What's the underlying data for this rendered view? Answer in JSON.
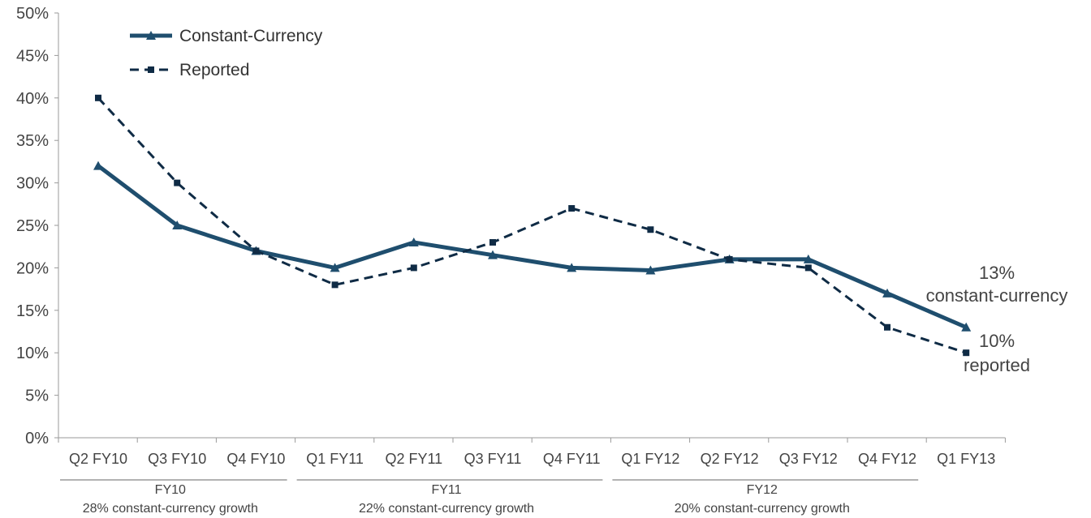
{
  "chart_data": {
    "type": "line",
    "categories": [
      "Q2 FY10",
      "Q3 FY10",
      "Q4 FY10",
      "Q1 FY11",
      "Q2 FY11",
      "Q3 FY11",
      "Q4 FY11",
      "Q1 FY12",
      "Q2 FY12",
      "Q3 FY12",
      "Q4 FY12",
      "Q1 FY13"
    ],
    "series": [
      {
        "name": "Constant-Currency",
        "values": [
          32,
          25,
          22,
          20,
          23,
          21.5,
          20,
          19.7,
          21,
          21,
          17,
          13
        ],
        "color": "#1f4e6e",
        "style": "solid",
        "marker": "triangle"
      },
      {
        "name": "Reported",
        "values": [
          40,
          30,
          22,
          18,
          20,
          23,
          27,
          24.5,
          21,
          20,
          13,
          10
        ],
        "color": "#0f2b45",
        "style": "dashed",
        "marker": "square"
      }
    ],
    "yticks": [
      "0%",
      "5%",
      "10%",
      "15%",
      "20%",
      "25%",
      "30%",
      "35%",
      "40%",
      "45%",
      "50%"
    ],
    "ylim": [
      0,
      50
    ],
    "legend_position": "top-left",
    "grid": false,
    "groups": [
      {
        "label": "FY10",
        "sublabel": "28% constant-currency growth",
        "from": 0,
        "to": 2
      },
      {
        "label": "FY11",
        "sublabel": "22% constant-currency growth",
        "from": 3,
        "to": 6
      },
      {
        "label": "FY12",
        "sublabel": "20% constant-currency growth",
        "from": 7,
        "to": 10
      }
    ],
    "annotations": [
      {
        "id": "cc",
        "line1": "13%",
        "line2": "constant-currency"
      },
      {
        "id": "rep",
        "line1": "10%",
        "line2": "reported"
      }
    ]
  }
}
